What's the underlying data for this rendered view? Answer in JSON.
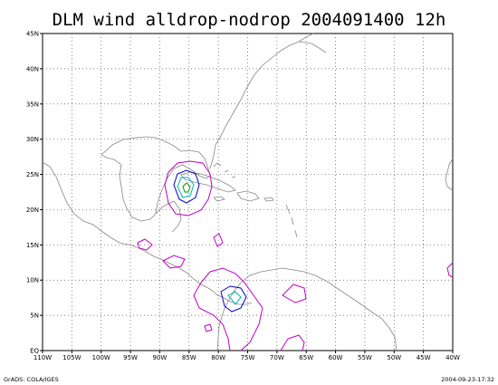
{
  "title": "DLM wind alldrop-nodrop 2004091400 12h",
  "x_ticks": [
    "110W",
    "105W",
    "100W",
    "95W",
    "90W",
    "85W",
    "80W",
    "75W",
    "70W",
    "65W",
    "60W",
    "55W",
    "50W",
    "45W",
    "40W"
  ],
  "y_ticks": [
    "EQ",
    "5N",
    "10N",
    "15N",
    "20N",
    "25N",
    "30N",
    "35N",
    "40N",
    "45N"
  ],
  "footer_left": "GrADS: COLA/IGES",
  "footer_right": "2004-09-23-17:32",
  "colors": {
    "coastline": "#888888",
    "contour_magenta": "#c000c0",
    "contour_blue": "#0000cc",
    "contour_cyan": "#00b0b0",
    "contour_green": "#009900"
  },
  "map_extent": {
    "lon": [
      -110,
      -40
    ],
    "lat": [
      0,
      45
    ]
  }
}
